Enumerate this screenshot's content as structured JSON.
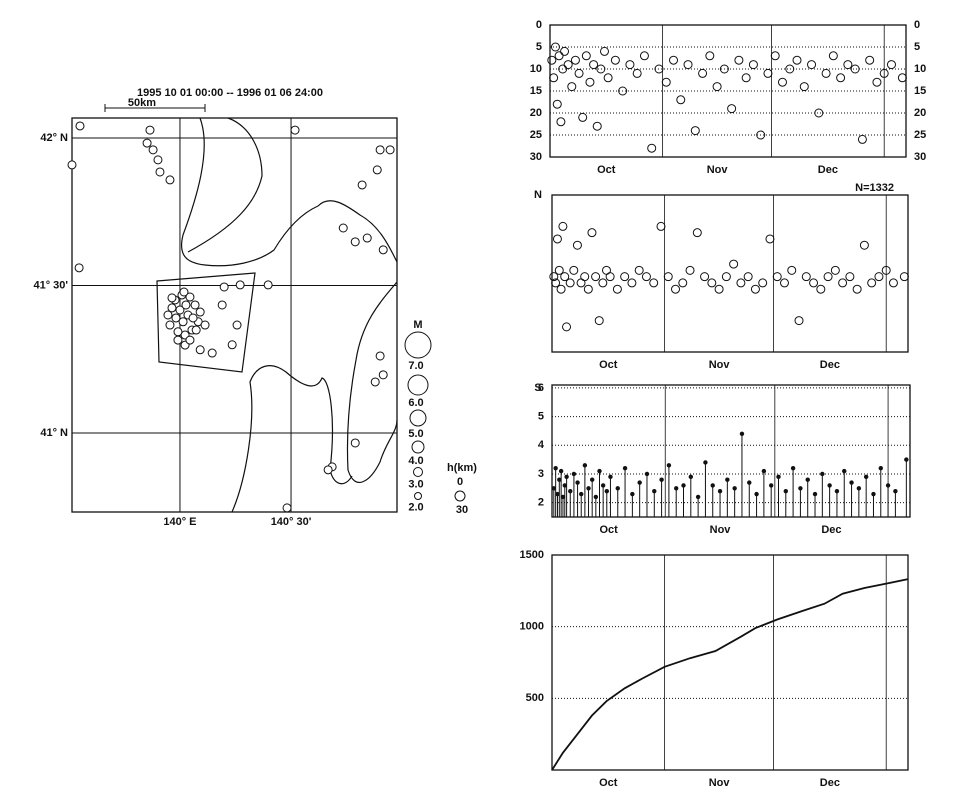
{
  "map": {
    "period": "1995 10 01 00:00 -- 1996 01 06 24:00",
    "scale_label": "50km",
    "lonlim": [
      139.514,
      140.977
    ],
    "latlim": [
      40.732,
      42.068
    ],
    "lat_ticks": [
      {
        "value": 42,
        "label": "42° N"
      },
      {
        "value": 41.5,
        "label": "41° 30'"
      },
      {
        "value": 41,
        "label": "41° N"
      }
    ],
    "lon_ticks": [
      {
        "value": 140,
        "label": "140° E"
      },
      {
        "value": 140.5,
        "label": "140° 30'"
      }
    ],
    "lon": [
      139.55,
      139.865,
      139.852,
      139.879,
      139.901,
      139.91,
      139.955,
      139.514,
      139.546,
      140.518,
      140.901,
      140.946,
      140.888,
      140.82,
      140.735,
      140.789,
      140.843,
      140.915,
      140.199,
      140.271,
      140.397,
      140.19,
      140.257,
      140.235,
      140.901,
      140.915,
      140.879,
      140.789,
      140.685,
      140.667,
      140.482,
      140.145,
      140.091,
      140.023,
      139.978,
      140.009,
      140.045,
      140.068,
      140.091,
      140.082,
      140.054,
      140.023,
      139.991,
      139.955,
      139.946,
      139.964,
      140.0,
      140.036,
      140.014,
      139.982,
      140.059,
      140.027,
      139.991,
      140.073,
      140.113,
      140.045,
      139.964,
      140.018
    ],
    "lat": [
      42.041,
      42.027,
      41.983,
      41.96,
      41.926,
      41.885,
      41.858,
      41.909,
      41.56,
      42.027,
      41.96,
      41.96,
      41.892,
      41.841,
      41.695,
      41.648,
      41.661,
      41.621,
      41.495,
      41.502,
      41.502,
      41.434,
      41.366,
      41.299,
      41.261,
      41.197,
      41.173,
      40.966,
      40.885,
      40.875,
      40.746,
      41.271,
      41.282,
      41.298,
      41.451,
      41.468,
      41.461,
      41.434,
      41.41,
      41.377,
      41.349,
      41.332,
      41.343,
      41.366,
      41.4,
      41.424,
      41.417,
      41.4,
      41.377,
      41.39,
      41.39,
      41.434,
      41.315,
      41.349,
      41.366,
      41.315,
      41.458,
      41.478
    ],
    "legend_title": "M",
    "legend_labels": [
      "7.0",
      "6.0",
      "5.0",
      "4.0",
      "3.0",
      "2.0"
    ],
    "depth_title": "h(km)",
    "depth_labels": [
      "0",
      "30"
    ]
  },
  "chart_data": [
    {
      "type": "scatter",
      "x": [
        0.5,
        1,
        1.5,
        2,
        2.5,
        3,
        3.5,
        4,
        5,
        6,
        7,
        8,
        9,
        10,
        11,
        12,
        13,
        14,
        15,
        16,
        18,
        20,
        22,
        24,
        26,
        28,
        30,
        32,
        34,
        36,
        38,
        40,
        42,
        44,
        46,
        48,
        50,
        52,
        54,
        56,
        58,
        60,
        62,
        64,
        66,
        68,
        70,
        72,
        74,
        76,
        78,
        80,
        82,
        84,
        86,
        88,
        90,
        92,
        94,
        97
      ],
      "values": [
        8,
        12,
        5,
        18,
        7,
        22,
        10,
        6,
        9,
        14,
        8,
        11,
        21,
        7,
        13,
        9,
        23,
        10,
        6,
        12,
        8,
        15,
        9,
        11,
        7,
        28,
        10,
        13,
        8,
        17,
        9,
        24,
        11,
        7,
        14,
        10,
        19,
        8,
        12,
        9,
        25,
        11,
        7,
        13,
        10,
        8,
        14,
        9,
        20,
        11,
        7,
        12,
        9,
        10,
        26,
        8,
        13,
        11,
        9,
        12
      ],
      "xlim": [
        0,
        98
      ],
      "ylim": [
        30,
        0
      ],
      "yticks": [
        0,
        5,
        10,
        15,
        20,
        25,
        30
      ],
      "grid": true,
      "right_labels": true,
      "month_starts": [
        31,
        61,
        92
      ],
      "month_labels": [
        "Oct",
        "Nov",
        "Dec"
      ]
    },
    {
      "type": "scatter",
      "x": [
        0.5,
        1,
        1.5,
        2,
        2.5,
        3,
        3.5,
        4,
        5,
        6,
        7,
        8,
        9,
        10,
        11,
        12,
        13,
        14,
        15,
        16,
        18,
        20,
        22,
        24,
        26,
        28,
        30,
        32,
        34,
        36,
        38,
        40,
        42,
        44,
        46,
        48,
        50,
        52,
        54,
        56,
        58,
        60,
        62,
        64,
        66,
        68,
        70,
        72,
        74,
        76,
        78,
        80,
        82,
        84,
        86,
        88,
        90,
        92,
        94,
        97
      ],
      "values": [
        41.47,
        41.46,
        41.53,
        41.48,
        41.45,
        41.55,
        41.47,
        41.39,
        41.46,
        41.48,
        41.52,
        41.46,
        41.47,
        41.45,
        41.54,
        41.47,
        41.4,
        41.46,
        41.48,
        41.47,
        41.45,
        41.47,
        41.46,
        41.48,
        41.47,
        41.46,
        41.55,
        41.47,
        41.45,
        41.46,
        41.48,
        41.54,
        41.47,
        41.46,
        41.45,
        41.47,
        41.49,
        41.46,
        41.47,
        41.45,
        41.46,
        41.53,
        41.47,
        41.46,
        41.48,
        41.4,
        41.47,
        41.46,
        41.45,
        41.47,
        41.48,
        41.46,
        41.47,
        41.45,
        41.52,
        41.46,
        41.47,
        41.48,
        41.46,
        41.47
      ],
      "xlim": [
        0,
        98
      ],
      "ylim": [
        41.35,
        41.6
      ],
      "top_label": "N",
      "bottom_label": "S",
      "count_label": "N=1332",
      "month_starts": [
        31,
        61,
        92
      ],
      "month_labels": [
        "Oct",
        "Nov",
        "Dec"
      ]
    },
    {
      "type": "stem",
      "x": [
        0.5,
        1,
        1.5,
        2,
        2.5,
        3,
        3.5,
        4,
        5,
        6,
        7,
        8,
        9,
        10,
        11,
        12,
        13,
        14,
        15,
        16,
        18,
        20,
        22,
        24,
        26,
        28,
        30,
        32,
        34,
        36,
        38,
        40,
        42,
        44,
        46,
        48,
        50,
        52,
        54,
        56,
        58,
        60,
        62,
        64,
        66,
        68,
        70,
        72,
        74,
        76,
        78,
        80,
        82,
        84,
        86,
        88,
        90,
        92,
        94,
        97
      ],
      "values": [
        2.5,
        3.2,
        2.3,
        2.8,
        3.1,
        2.2,
        2.6,
        2.9,
        2.4,
        3.0,
        2.7,
        2.3,
        3.3,
        2.5,
        2.8,
        2.2,
        3.1,
        2.6,
        2.4,
        2.9,
        2.5,
        3.2,
        2.3,
        2.7,
        3.0,
        2.4,
        2.8,
        3.3,
        2.5,
        2.6,
        2.9,
        2.2,
        3.4,
        2.6,
        2.4,
        2.8,
        2.5,
        4.4,
        2.7,
        2.3,
        3.1,
        2.6,
        2.9,
        2.4,
        3.2,
        2.5,
        2.8,
        2.3,
        3.0,
        2.6,
        2.4,
        3.1,
        2.7,
        2.5,
        2.9,
        2.3,
        3.2,
        2.6,
        2.4,
        3.5
      ],
      "xlim": [
        0,
        98
      ],
      "ylim": [
        1.5,
        6.1
      ],
      "yticks": [
        2,
        3,
        4,
        5,
        6
      ],
      "grid": true,
      "month_starts": [
        31,
        61,
        92
      ],
      "month_labels": [
        "Oct",
        "Nov",
        "Dec"
      ]
    },
    {
      "type": "line",
      "x": [
        0,
        3,
        7,
        11,
        15,
        20,
        25,
        31,
        38,
        45,
        52,
        56,
        62,
        69,
        75,
        80,
        86,
        92,
        98
      ],
      "values": [
        0,
        120,
        250,
        380,
        480,
        570,
        640,
        720,
        780,
        830,
        930,
        990,
        1050,
        1110,
        1160,
        1230,
        1270,
        1300,
        1332
      ],
      "xlim": [
        0,
        98
      ],
      "ylim": [
        0,
        1500
      ],
      "yticks": [
        500,
        1000,
        1500
      ],
      "grid": true,
      "month_starts": [
        31,
        61,
        92
      ],
      "month_labels": [
        "Oct",
        "Nov",
        "Dec"
      ]
    }
  ]
}
